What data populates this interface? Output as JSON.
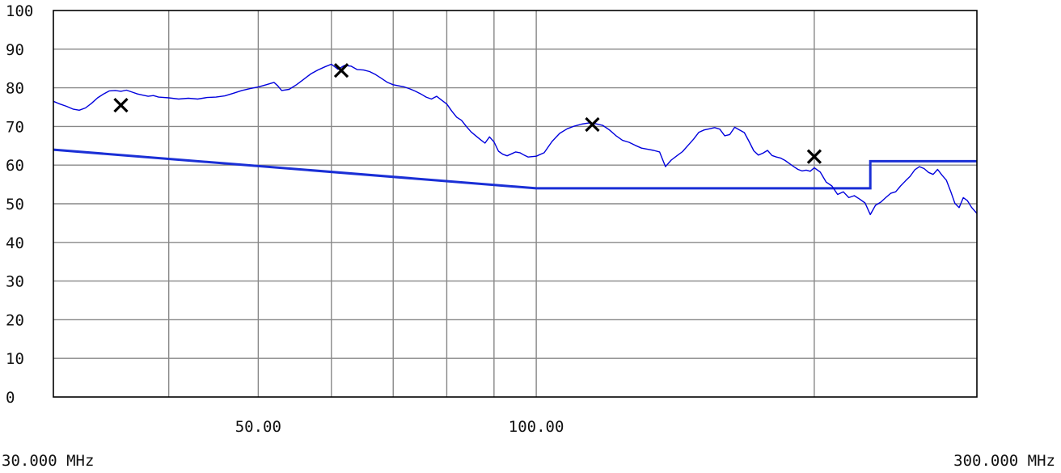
{
  "chart_data": {
    "type": "line",
    "title": "",
    "xlabel": "",
    "ylabel": "",
    "x_scale": "log",
    "xlim": [
      30,
      300
    ],
    "ylim": [
      0,
      100
    ],
    "grid": true,
    "yticks": [
      0,
      10,
      20,
      30,
      40,
      50,
      60,
      70,
      80,
      90,
      100
    ],
    "ytick_labels": [
      "0",
      "10",
      "20",
      "30",
      "40",
      "50",
      "60",
      "70",
      "80",
      "90",
      "100"
    ],
    "x_gridlines": [
      40,
      50,
      60,
      70,
      80,
      90,
      100,
      200
    ],
    "xtick_labels": [
      {
        "x": 50,
        "label": "50.00"
      },
      {
        "x": 100,
        "label": "100.00"
      }
    ],
    "x_range_labels": {
      "start": "30.000 MHz",
      "end": "300.000 MHz"
    },
    "colors": {
      "trace": "#0000dd",
      "limit": "#1a2fd6",
      "grid": "#888888",
      "marker": "#000000",
      "axis": "#000000"
    },
    "series": [
      {
        "role": "measurement",
        "points": [
          [
            30,
            76.5
          ],
          [
            30.5,
            75.8
          ],
          [
            31,
            75.2
          ],
          [
            31.5,
            74.5
          ],
          [
            32,
            74.2
          ],
          [
            32.5,
            74.8
          ],
          [
            33,
            76
          ],
          [
            33.5,
            77.4
          ],
          [
            34,
            78.4
          ],
          [
            34.5,
            79.2
          ],
          [
            35,
            79.3
          ],
          [
            35.5,
            79.1
          ],
          [
            36,
            79.4
          ],
          [
            36.5,
            78.9
          ],
          [
            37,
            78.4
          ],
          [
            37.5,
            78.1
          ],
          [
            38,
            77.8
          ],
          [
            38.5,
            78
          ],
          [
            39,
            77.6
          ],
          [
            40,
            77.4
          ],
          [
            41,
            77.1
          ],
          [
            42,
            77.3
          ],
          [
            43,
            77.1
          ],
          [
            44,
            77.5
          ],
          [
            45,
            77.6
          ],
          [
            46,
            77.9
          ],
          [
            47,
            78.6
          ],
          [
            48,
            79.3
          ],
          [
            49,
            79.8
          ],
          [
            50,
            80.2
          ],
          [
            51,
            80.8
          ],
          [
            52,
            81.4
          ],
          [
            52.5,
            80.5
          ],
          [
            53,
            79.3
          ],
          [
            54,
            79.6
          ],
          [
            55,
            80.8
          ],
          [
            56,
            82.2
          ],
          [
            57,
            83.6
          ],
          [
            58,
            84.6
          ],
          [
            59,
            85.4
          ],
          [
            60,
            86.1
          ],
          [
            61,
            84.8
          ],
          [
            62,
            85.8
          ],
          [
            63,
            85.6
          ],
          [
            64,
            84.7
          ],
          [
            65,
            84.6
          ],
          [
            66,
            84.2
          ],
          [
            67,
            83.4
          ],
          [
            68,
            82.4
          ],
          [
            69,
            81.4
          ],
          [
            70,
            80.8
          ],
          [
            71,
            80.5
          ],
          [
            72,
            80.2
          ],
          [
            73,
            79.7
          ],
          [
            74,
            79.1
          ],
          [
            75,
            78.4
          ],
          [
            76,
            77.6
          ],
          [
            77,
            77.1
          ],
          [
            78,
            77.8
          ],
          [
            79,
            76.8
          ],
          [
            80,
            75.8
          ],
          [
            81,
            74
          ],
          [
            82,
            72.4
          ],
          [
            83,
            71.6
          ],
          [
            84,
            70
          ],
          [
            85,
            68.6
          ],
          [
            86,
            67.6
          ],
          [
            87,
            66.6
          ],
          [
            88,
            65.7
          ],
          [
            89,
            67.3
          ],
          [
            90,
            66
          ],
          [
            91,
            63.6
          ],
          [
            92,
            62.8
          ],
          [
            93,
            62.4
          ],
          [
            94,
            62.9
          ],
          [
            95,
            63.4
          ],
          [
            96,
            63.2
          ],
          [
            97,
            62.6
          ],
          [
            98,
            62.1
          ],
          [
            99,
            62.2
          ],
          [
            100,
            62.3
          ],
          [
            102,
            63.2
          ],
          [
            104,
            66.1
          ],
          [
            106,
            68.2
          ],
          [
            108,
            69.4
          ],
          [
            110,
            70.1
          ],
          [
            112,
            70.6
          ],
          [
            114,
            70.9
          ],
          [
            116,
            70.7
          ],
          [
            118,
            70.3
          ],
          [
            120,
            69.1
          ],
          [
            122,
            67.6
          ],
          [
            124,
            66.4
          ],
          [
            126,
            65.9
          ],
          [
            128,
            65.1
          ],
          [
            130,
            64.4
          ],
          [
            132,
            64.1
          ],
          [
            134,
            63.8
          ],
          [
            136,
            63.4
          ],
          [
            138,
            59.6
          ],
          [
            140,
            61.3
          ],
          [
            142,
            62.4
          ],
          [
            144,
            63.5
          ],
          [
            146,
            65.1
          ],
          [
            148,
            66.7
          ],
          [
            150,
            68.5
          ],
          [
            152,
            69.1
          ],
          [
            154,
            69.4
          ],
          [
            156,
            69.7
          ],
          [
            158,
            69.3
          ],
          [
            160,
            67.6
          ],
          [
            162,
            67.9
          ],
          [
            164,
            69.8
          ],
          [
            166,
            69.1
          ],
          [
            168,
            68.4
          ],
          [
            170,
            66.1
          ],
          [
            172,
            63.7
          ],
          [
            174,
            62.6
          ],
          [
            176,
            63.1
          ],
          [
            178,
            63.8
          ],
          [
            180,
            62.5
          ],
          [
            182,
            62.1
          ],
          [
            184,
            61.8
          ],
          [
            186,
            61.2
          ],
          [
            188,
            60.4
          ],
          [
            190,
            59.6
          ],
          [
            192,
            58.9
          ],
          [
            194,
            58.5
          ],
          [
            196,
            58.7
          ],
          [
            198,
            58.4
          ],
          [
            200,
            59.3
          ],
          [
            203,
            58.2
          ],
          [
            206,
            55.6
          ],
          [
            209,
            54.6
          ],
          [
            212,
            52.4
          ],
          [
            215,
            53.1
          ],
          [
            218,
            51.6
          ],
          [
            221,
            52.1
          ],
          [
            224,
            51.2
          ],
          [
            227,
            50.2
          ],
          [
            230,
            47.2
          ],
          [
            233,
            49.6
          ],
          [
            236,
            50.4
          ],
          [
            239,
            51.6
          ],
          [
            242,
            52.7
          ],
          [
            245,
            53.1
          ],
          [
            248,
            54.6
          ],
          [
            251,
            55.9
          ],
          [
            254,
            57.1
          ],
          [
            257,
            58.8
          ],
          [
            260,
            59.6
          ],
          [
            263,
            59.1
          ],
          [
            266,
            58.1
          ],
          [
            269,
            57.6
          ],
          [
            272,
            58.9
          ],
          [
            275,
            57.4
          ],
          [
            278,
            56.1
          ],
          [
            281,
            53.2
          ],
          [
            284,
            50.1
          ],
          [
            287,
            49
          ],
          [
            290,
            51.6
          ],
          [
            293,
            50.8
          ],
          [
            296,
            49.1
          ],
          [
            300,
            47.5
          ]
        ]
      },
      {
        "role": "limit",
        "points": [
          [
            30,
            64
          ],
          [
            100,
            54
          ],
          [
            230,
            54
          ],
          [
            230,
            61
          ],
          [
            300,
            61
          ]
        ]
      }
    ],
    "markers": [
      {
        "x": 35.5,
        "y": 75.5
      },
      {
        "x": 61.5,
        "y": 84.5
      },
      {
        "x": 115,
        "y": 70.5
      },
      {
        "x": 200,
        "y": 62.2
      }
    ]
  }
}
